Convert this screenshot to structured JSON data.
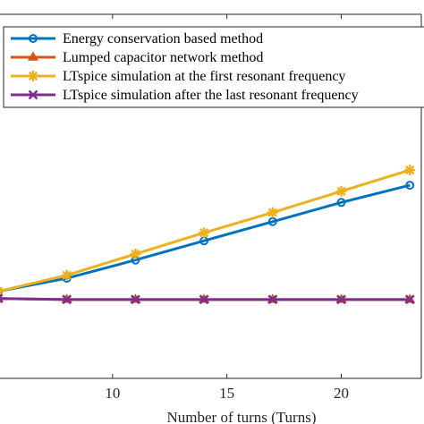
{
  "chart_data": {
    "type": "line",
    "title": "",
    "xlabel": "Number of turns (Turns)",
    "ylabel": "",
    "xlim": [
      5,
      23.5
    ],
    "ylim": [
      0,
      18
    ],
    "xticks": [
      10,
      15,
      20
    ],
    "grid": false,
    "legend_position": "top-left",
    "series": [
      {
        "name": "Energy conservation based method",
        "color": "#0072BD",
        "marker": "circle",
        "x": [
          5,
          8,
          11,
          14,
          17,
          20,
          23
        ],
        "y": [
          4.3,
          4.95,
          5.85,
          6.8,
          7.75,
          8.7,
          9.55
        ]
      },
      {
        "name": "Lumped capacitor network method",
        "color": "#D95319",
        "marker": "triangle",
        "x": [
          5,
          8,
          11,
          14,
          17,
          20,
          23
        ],
        "y": [
          3.95,
          3.9,
          3.9,
          3.9,
          3.9,
          3.9,
          3.9
        ]
      },
      {
        "name": "LTspice simulation at the first resonant frequency",
        "color": "#EDB120",
        "marker": "star",
        "x": [
          5,
          8,
          11,
          14,
          17,
          20,
          23
        ],
        "y": [
          4.3,
          5.1,
          6.15,
          7.2,
          8.2,
          9.25,
          10.3
        ]
      },
      {
        "name": "LTspice simulation after the last resonant frequency",
        "color": "#7E2F8E",
        "marker": "x",
        "x": [
          5,
          8,
          11,
          14,
          17,
          20,
          23
        ],
        "y": [
          3.95,
          3.9,
          3.9,
          3.9,
          3.9,
          3.9,
          3.9
        ]
      }
    ]
  }
}
